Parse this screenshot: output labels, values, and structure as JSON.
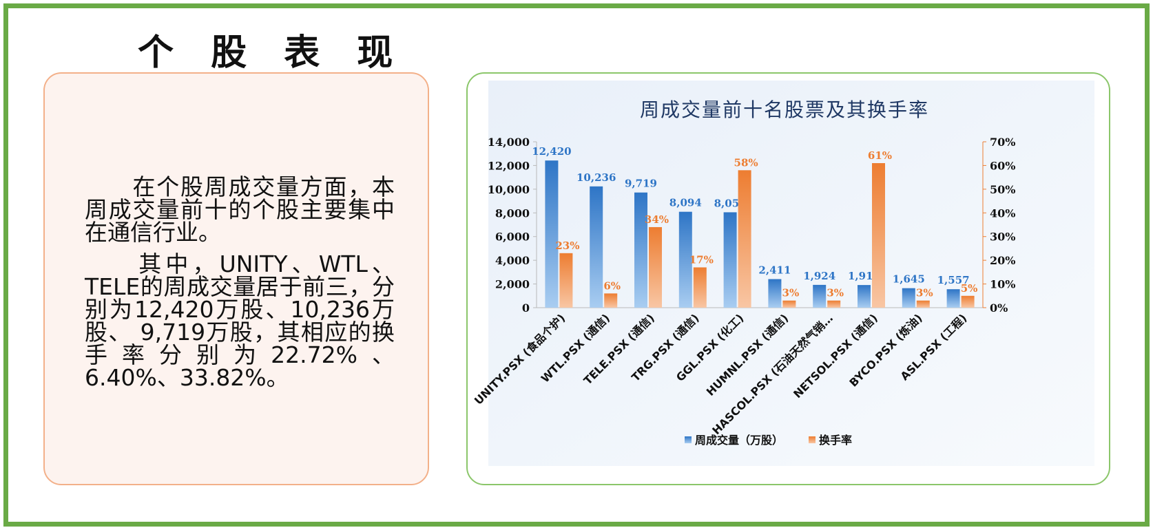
{
  "page": {
    "title": "个 股 表 现",
    "paragraphs": [
      "　　在个股周成交量方面，本周成交量前十的个股主要集中在通信行业。",
      "　　其中，UNITY、WTL、TELE的周成交量居于前三，分别为12,420万股、10,236万股、 9,719万股，其相应的换手率分别为22.72%、6.40%、33.82%。"
    ]
  },
  "colors": {
    "frame": "#6aaa46",
    "text_panel_bg": "#fdf3ef",
    "text_panel_border": "#f3b089",
    "chart_panel_border": "#8bc66a",
    "volume_bar": "#2e75c6",
    "turnover_bar": "#ed7d31",
    "chart_title": "#1f3864"
  },
  "chart_data": {
    "type": "bar",
    "title": "周成交量前十名股票及其换手率",
    "categories": [
      "UNITY.PSX (食品个护)",
      "WTL.PSX (通信)",
      "TELE.PSX (通信)",
      "TRG.PSX (通信)",
      "GGL.PSX (化工)",
      "HUMNL.PSX (通信)",
      "HASCOL.PSX (石油天然气销…",
      "NETSOL.PSX (通信)",
      "BYCO.PSX (炼油)",
      "ASL.PSX (工程)"
    ],
    "series": [
      {
        "name": "周成交量（万股）",
        "axis": "left",
        "values": [
          12420,
          10236,
          9719,
          8094,
          8051,
          2411,
          1924,
          1910,
          1645,
          1557
        ],
        "labels": [
          "12,420",
          "10,236",
          "9,719",
          "8,094",
          "8,051",
          "2,411",
          "1,924",
          "1,910",
          "1,645",
          "1,557"
        ]
      },
      {
        "name": "换手率",
        "axis": "right",
        "values": [
          23,
          6,
          34,
          17,
          58,
          3,
          3,
          61,
          3,
          5
        ],
        "labels": [
          "23%",
          "6%",
          "34%",
          "17%",
          "58%",
          "3%",
          "3%",
          "61%",
          "3%",
          "5%"
        ]
      }
    ],
    "y_left": {
      "lim": [
        0,
        14000
      ],
      "ticks": [
        "0",
        "2,000",
        "4,000",
        "6,000",
        "8,000",
        "10,000",
        "12,000",
        "14,000"
      ]
    },
    "y_right": {
      "lim": [
        0,
        70
      ],
      "ticks": [
        "0%",
        "10%",
        "20%",
        "30%",
        "40%",
        "50%",
        "60%",
        "70%"
      ]
    },
    "grid": false,
    "legend": "bottom"
  }
}
